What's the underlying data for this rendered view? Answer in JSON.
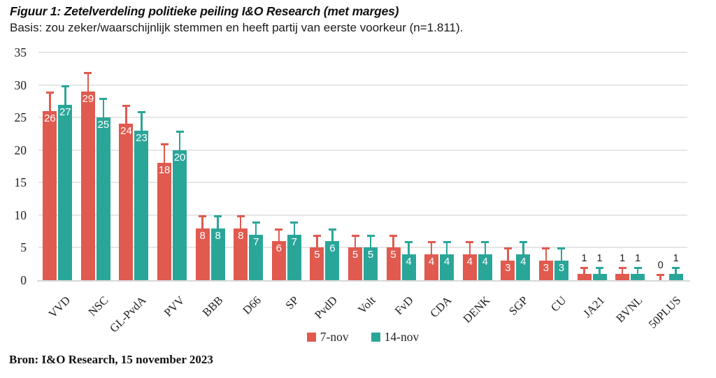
{
  "header": {
    "title": "Figuur 1: Zetelverdeling politieke peiling I&O Research (met marges)",
    "subtitle": "Basis: zou zeker/waarschijnlijk stemmen en heeft partij van eerste voorkeur (n=1.811)."
  },
  "footer": {
    "source": "Bron: I&O Research, 15 november 2023"
  },
  "chart_data": {
    "type": "bar",
    "title": "Zetelverdeling politieke peiling I&O Research (met marges)",
    "categories": [
      "VVD",
      "NSC",
      "GL-PvdA",
      "PVV",
      "BBB",
      "D66",
      "SP",
      "PvdD",
      "Volt",
      "FvD",
      "CDA",
      "DENK",
      "SGP",
      "CU",
      "JA21",
      "BVNL",
      "50PLUS"
    ],
    "series": [
      {
        "name": "7-nov",
        "color": "#e05a4f",
        "values": [
          26,
          29,
          24,
          18,
          8,
          8,
          6,
          5,
          5,
          5,
          4,
          4,
          3,
          3,
          1,
          1,
          0
        ],
        "margins": [
          3,
          3,
          3,
          3,
          2,
          2,
          2,
          2,
          2,
          2,
          2,
          2,
          2,
          2,
          1,
          1,
          1
        ]
      },
      {
        "name": "14-nov",
        "color": "#2aa699",
        "values": [
          27,
          25,
          23,
          20,
          8,
          7,
          7,
          6,
          5,
          4,
          4,
          4,
          4,
          3,
          1,
          1,
          1
        ],
        "margins": [
          3,
          3,
          3,
          3,
          2,
          2,
          2,
          2,
          2,
          2,
          2,
          2,
          2,
          2,
          1,
          1,
          1
        ]
      }
    ],
    "ylabel": "",
    "xlabel": "",
    "ylim": [
      0,
      35
    ],
    "yticks": [
      0,
      5,
      10,
      15,
      20,
      25,
      30,
      35
    ],
    "grid": true,
    "legend_position": "bottom",
    "error_bars": "upper",
    "value_labels": "inside-top-white, above-dark-when-value-below-2"
  }
}
